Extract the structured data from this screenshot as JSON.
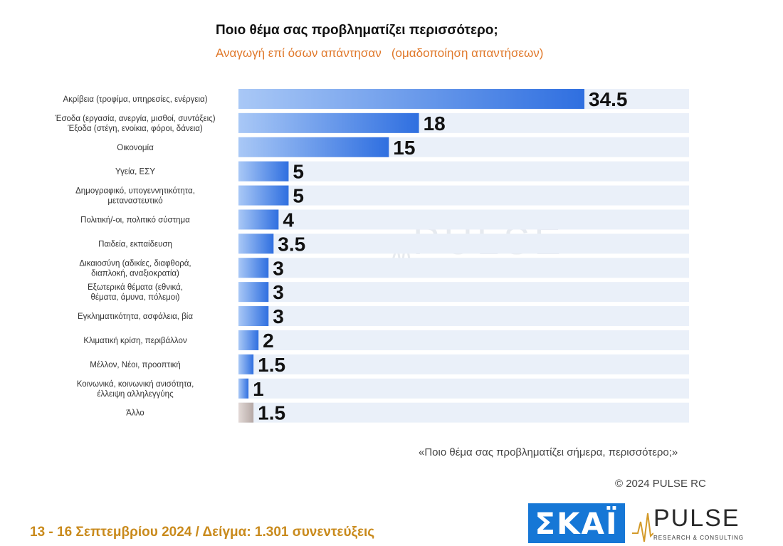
{
  "header": {
    "title": "Ποιο θέμα σας προβληματίζει περισσότερο;",
    "subtitle": "Αναγωγή επί όσων απάντησαν   (ομαδοποίηση απαντήσεων)"
  },
  "chart_data": {
    "type": "bar",
    "orientation": "horizontal",
    "categories": [
      [
        "Ακρίβεια (τροφίμα, υπηρεσίες, ενέργεια)"
      ],
      [
        "Έσοδα (εργασία, ανεργία, μισθοί, συντάξεις)",
        "Έξοδα (στέγη, ενοίκια, φόροι, δάνεια)"
      ],
      [
        "Οικονομία"
      ],
      [
        "Υγεία, ΕΣΥ"
      ],
      [
        "Δημογραφικό, υπογεννητικότητα,",
        "μεταναστευτικό"
      ],
      [
        "Πολιτική/-οι, πολιτικό σύστημα"
      ],
      [
        "Παιδεία, εκπαίδευση"
      ],
      [
        "Δικαιοσύνη (αδικίες, διαφθορά,",
        "διαπλοκή, αναξιοκρατία)"
      ],
      [
        "Εξωτερικά θέματα (εθνικά,",
        "θέματα, άμυνα, πόλεμοι)"
      ],
      [
        "Εγκληματικότητα, ασφάλεια, βία"
      ],
      [
        "Κλιματική κρίση, περιβάλλον"
      ],
      [
        "Μέλλον, Νέοι, προοπτική"
      ],
      [
        "Κοινωνικά, κοινωνική ανισότητα,",
        "έλλειψη αλληλεγγύης"
      ],
      [
        "Άλλο"
      ]
    ],
    "values": [
      34.5,
      18,
      15,
      5,
      5,
      4,
      3.5,
      3,
      3,
      3,
      2,
      1.5,
      1,
      1.5
    ],
    "value_labels": [
      "34.5",
      "18",
      "15",
      "5",
      "5",
      "4",
      "3.5",
      "3",
      "3",
      "3",
      "2",
      "1.5",
      "1",
      "1.5"
    ],
    "xlim": [
      0,
      34.5
    ],
    "grid": false,
    "legend": "none",
    "colors": {
      "bar": "#2f6fe0",
      "bar_light": "#a9c8f6",
      "other_bar": "#b5a8a5",
      "other_bar_light": "#e3dad7",
      "row_band": "#eaf0f9",
      "label": "#333333",
      "value": "#111111"
    }
  },
  "notes": {
    "question": "«Ποιο θέμα σας προβληματίζει σήμερα, περισσότερο;»",
    "copyright": "© 2024 PULSE RC"
  },
  "footer": {
    "text": "13 - 16 Σεπτεμβρίου 2024  /  Δείγμα:  1.301 συνεντεύξεις"
  },
  "logos": {
    "skai": "ΣΚΑΪ",
    "pulse": "PULSE",
    "pulse_sub": "RESEARCH & CONSULTING"
  },
  "watermark": {
    "word": "PULSE",
    "sub": "RESEARCH & CONSULTING"
  }
}
